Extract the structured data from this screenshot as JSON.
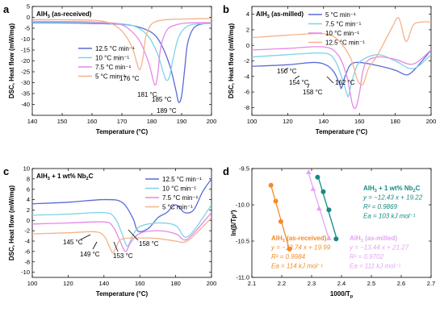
{
  "figure": {
    "background": "#ffffff"
  },
  "chart_data": [
    {
      "panel": "a",
      "type": "line",
      "title": "AlH3 (as-received)",
      "title_main": "AlH",
      "title_sub": "3",
      "title_rest": " (as-received)",
      "xlabel": "Temperature (°C)",
      "ylabel": "DSC, Heat flow (mW/mg)",
      "xlim": [
        140,
        200
      ],
      "ylim": [
        -45,
        5
      ],
      "xticks": [
        "140",
        "150",
        "160",
        "170",
        "180",
        "190",
        "200"
      ],
      "yticks": [
        "-40",
        "-35",
        "-30",
        "-25",
        "-20",
        "-15",
        "-10",
        "-5",
        "0",
        "5"
      ],
      "legend": "right",
      "series": [
        {
          "name": "12.5 °C min⁻¹",
          "color": "#5b6bd6",
          "x": [
            140,
            150,
            160,
            170,
            175,
            180,
            183,
            186,
            188,
            189,
            190,
            191,
            192,
            194,
            197,
            200
          ],
          "y": [
            -2.5,
            -2.6,
            -2.8,
            -3.2,
            -4.2,
            -7,
            -12,
            -22,
            -33,
            -39,
            -36,
            -24,
            -12,
            -5,
            -3,
            -2.8
          ]
        },
        {
          "name": "10 °C min⁻¹",
          "color": "#7fd3e6",
          "x": [
            140,
            150,
            160,
            170,
            175,
            179,
            182,
            184,
            185,
            186,
            187,
            189,
            192,
            196,
            200
          ],
          "y": [
            -2.2,
            -2.3,
            -2.5,
            -3,
            -4.5,
            -9,
            -17,
            -26,
            -29,
            -27,
            -20,
            -9,
            -4,
            -3,
            -2.8
          ]
        },
        {
          "name": "7.5 °C min⁻¹",
          "color": "#e688e6",
          "x": [
            140,
            150,
            160,
            168,
            172,
            176,
            179,
            181,
            182,
            183,
            185,
            188,
            192,
            200
          ],
          "y": [
            -1.8,
            -1.9,
            -2.1,
            -2.8,
            -5,
            -11,
            -21,
            -31,
            -26,
            -14,
            -6,
            -3.5,
            -2.6,
            -2.4
          ]
        },
        {
          "name": "5 °C min⁻¹",
          "color": "#f2b48a",
          "x": [
            140,
            150,
            160,
            165,
            169,
            172,
            174,
            175,
            176,
            177,
            178,
            180,
            184,
            190,
            200
          ],
          "y": [
            -1,
            -1.1,
            -1.3,
            -2.2,
            -5,
            -10,
            -16,
            -21,
            -24,
            -19,
            -9,
            -3,
            -1.2,
            -0.8,
            -0.6
          ]
        }
      ],
      "annotations": [
        "176 °C",
        "181 °C",
        "185 °C",
        "189 °C"
      ]
    },
    {
      "panel": "b",
      "type": "line",
      "title_main": "AlH",
      "title_sub": "3",
      "title_rest": " (as-milled)",
      "xlabel": "Temperature (°C)",
      "ylabel": "DSC, Heat flow (mW/mg)",
      "xlim": [
        100,
        200
      ],
      "ylim": [
        -9,
        5
      ],
      "xticks": [
        "100",
        "120",
        "140",
        "160",
        "180",
        "200"
      ],
      "yticks": [
        "-8",
        "-6",
        "-4",
        "-2",
        "0",
        "2",
        "4"
      ],
      "legend": "top-right",
      "series": [
        {
          "name": "5 °C min⁻¹",
          "color": "#5b6bd6",
          "x": [
            100,
            120,
            135,
            142,
            146,
            149,
            150,
            152,
            155,
            160,
            170,
            180,
            186,
            190,
            195,
            200
          ],
          "y": [
            -2.7,
            -2.5,
            -2.2,
            -2.6,
            -3.5,
            -5,
            -5.5,
            -4,
            -2.5,
            -2.2,
            -2.6,
            -3.2,
            -3.8,
            -3.3,
            -2,
            -0.6
          ]
        },
        {
          "name": "7.5 °C min⁻¹",
          "color": "#7fd3e6",
          "x": [
            100,
            120,
            140,
            146,
            150,
            153,
            154,
            156,
            160,
            170,
            180,
            190,
            200
          ],
          "y": [
            -1.5,
            -1.2,
            -1,
            -1.8,
            -4,
            -6.2,
            -6.5,
            -4.5,
            -2.2,
            -1.2,
            -2,
            -3,
            -1.2
          ]
        },
        {
          "name": "10 °C min⁻¹",
          "color": "#e688e6",
          "x": [
            100,
            120,
            140,
            148,
            153,
            156,
            158,
            160,
            163,
            170,
            180,
            190,
            200
          ],
          "y": [
            -0.6,
            -0.4,
            -0.2,
            -1.2,
            -4,
            -7.5,
            -8,
            -6.2,
            -2.5,
            -1.5,
            -1.8,
            -2.4,
            -0.6
          ]
        },
        {
          "name": "12.5 °C min⁻¹",
          "color": "#f2b48a",
          "x": [
            100,
            120,
            140,
            148,
            155,
            159,
            162,
            165,
            170,
            178,
            182,
            186,
            190,
            195,
            200
          ],
          "y": [
            1,
            1.3,
            1.5,
            0.7,
            -1.6,
            -4.5,
            -5,
            -3,
            -1.3,
            2.2,
            3.5,
            0.5,
            2.6,
            3,
            3
          ]
        }
      ],
      "annotations": [
        "150 °C",
        "154 °C",
        "158 °C",
        "162 °C"
      ]
    },
    {
      "panel": "c",
      "type": "line",
      "title_main": "AlH",
      "title_sub": "3",
      "title_rest": " + 1 wt% Nb",
      "title_sub2": "2",
      "title_end": "C",
      "xlabel": "Temperature (°C)",
      "ylabel": "DSC, Heat flow (mW/mg)",
      "xlim": [
        100,
        200
      ],
      "ylim": [
        -11,
        10
      ],
      "xticks": [
        "100",
        "120",
        "140",
        "160",
        "180",
        "200"
      ],
      "yticks": [
        "-10",
        "-8",
        "-6",
        "-4",
        "-2",
        "0",
        "2",
        "4",
        "6",
        "8",
        "10"
      ],
      "legend": "top-right",
      "series": [
        {
          "name": "12.5 °C min⁻¹",
          "color": "#5b6bd6",
          "x": [
            100,
            120,
            140,
            150,
            156,
            158,
            160,
            165,
            170,
            175,
            180,
            185,
            190,
            195,
            200
          ],
          "y": [
            3.2,
            3.5,
            4,
            3.5,
            0.5,
            -1.5,
            -2.2,
            -1.5,
            0.5,
            1.5,
            3,
            1.5,
            2,
            5.5,
            8
          ]
        },
        {
          "name": "10 °C min⁻¹",
          "color": "#7fd3e6",
          "x": [
            100,
            120,
            140,
            146,
            150,
            153,
            156,
            160,
            170,
            180,
            185,
            190,
            200
          ],
          "y": [
            1,
            1.2,
            1.5,
            0.5,
            -2.5,
            -5,
            -3,
            -1.2,
            -0.5,
            -1,
            -3.2,
            -2,
            3
          ]
        },
        {
          "name": "7.5 °C min⁻¹",
          "color": "#e688e6",
          "x": [
            100,
            120,
            140,
            145,
            149,
            152,
            155,
            160,
            170,
            180,
            185,
            190,
            200
          ],
          "y": [
            -0.7,
            -0.5,
            -0.3,
            -1.2,
            -4,
            -6,
            -4.2,
            -2.5,
            -2,
            -2.6,
            -3.8,
            -2.5,
            1.5
          ]
        },
        {
          "name": "5 °C min⁻¹",
          "color": "#f2b48a",
          "x": [
            100,
            120,
            135,
            140,
            143,
            145,
            147,
            150,
            160,
            170,
            180,
            185,
            190,
            200
          ],
          "y": [
            -2.6,
            -2.4,
            -2.2,
            -3,
            -5,
            -6.3,
            -5,
            -3.6,
            -3.4,
            -3.5,
            -4,
            -4.2,
            -3,
            0.5
          ]
        }
      ],
      "annotations": [
        "145 °C",
        "149 °C",
        "153 °C",
        "158 °C"
      ]
    },
    {
      "panel": "d",
      "type": "scatter",
      "xlabel": "1000/T",
      "xlabel_sub": "p",
      "ylabel": "ln(β/Tp²)",
      "xlim": [
        2.1,
        2.7
      ],
      "ylim": [
        -11.0,
        -9.5
      ],
      "xticks": [
        "2.1",
        "2.2",
        "2.3",
        "2.4",
        "2.5",
        "2.6",
        "2.7"
      ],
      "yticks": [
        "-11.0",
        "-10.5",
        "-10.0",
        "-9.5"
      ],
      "series": [
        {
          "name": "AlH3 (as-received)",
          "label_main": "AlH",
          "label_sub": "3",
          "label_rest": " (as-received)",
          "color": "#f28c28",
          "x": [
            2.164,
            2.18,
            2.197,
            2.226
          ],
          "y": [
            -9.73,
            -9.95,
            -10.23,
            -10.61
          ],
          "fit": [
            "y = −13.74 x + 19.99",
            "R² = 0.9984",
            "Ea = 114 kJ mol⁻¹"
          ]
        },
        {
          "name": "AlH3 (as-milled)",
          "label_main": "AlH",
          "label_sub": "3",
          "label_rest": " (as-milled)",
          "color": "#e3a6f2",
          "x": [
            2.29,
            2.305,
            2.325,
            2.358
          ],
          "y": [
            -9.55,
            -9.78,
            -10.05,
            -10.46
          ],
          "fit": [
            "y = −13.44 x + 21.27",
            "R² = 0.9702",
            "Ea = 111 kJ mol⁻¹"
          ]
        },
        {
          "name": "AlH3 + 1 wt% Nb2C",
          "label_main": "AlH",
          "label_sub": "3",
          "label_rest": " + 1 wt% Nb",
          "label_sub2": "2",
          "label_end": "C",
          "color": "#138a82",
          "x": [
            2.32,
            2.339,
            2.358,
            2.382
          ],
          "y": [
            -9.62,
            -9.82,
            -10.07,
            -10.47
          ],
          "fit": [
            "y = −12.43 x + 19.22",
            "R² = 0.9869",
            "Ea = 103 kJ mol⁻¹"
          ]
        }
      ]
    }
  ]
}
